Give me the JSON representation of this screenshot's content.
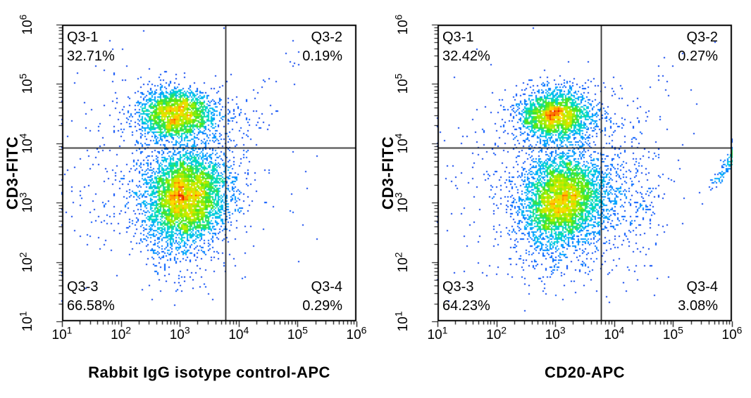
{
  "figure": {
    "background": "#ffffff",
    "text_color": "#000000",
    "gate_line_color": "#000000"
  },
  "axes": {
    "base": "10",
    "ticks_exp": [
      1,
      2,
      3,
      4,
      5,
      6
    ]
  },
  "colormap": {
    "name": "jet-density",
    "stops": [
      {
        "t": 0.0,
        "color": "#1919cd"
      },
      {
        "t": 0.18,
        "color": "#0055ff"
      },
      {
        "t": 0.33,
        "color": "#00aaff"
      },
      {
        "t": 0.45,
        "color": "#00dcc8"
      },
      {
        "t": 0.57,
        "color": "#46e61e"
      },
      {
        "t": 0.68,
        "color": "#b4f000"
      },
      {
        "t": 0.78,
        "color": "#ffdc00"
      },
      {
        "t": 0.88,
        "color": "#ff7800"
      },
      {
        "t": 1.0,
        "color": "#e10000"
      }
    ]
  },
  "chart_data": [
    {
      "type": "scatter",
      "subtype": "flow-cytometry-pseudocolor-density",
      "xlabel": "Rabbit IgG isotype control-APC",
      "ylabel": "CD3-FITC",
      "x_scale": "log",
      "y_scale": "log",
      "x_range": [
        10,
        1000000
      ],
      "y_range": [
        10,
        1000000
      ],
      "grid": false,
      "seed": 7,
      "gate": {
        "x": 6000,
        "y": 8500
      },
      "quadrants": [
        {
          "name": "Q3-1",
          "percent": "32.71%",
          "position": "top-left"
        },
        {
          "name": "Q3-2",
          "percent": "0.19%",
          "position": "top-right"
        },
        {
          "name": "Q3-3",
          "percent": "66.58%",
          "position": "bottom-left"
        },
        {
          "name": "Q3-4",
          "percent": "0.29%",
          "position": "bottom-right"
        }
      ],
      "populations": [
        {
          "name": "cd3-positive-lymphocytes",
          "n": 2400,
          "cx": 2.95,
          "cy": 4.48,
          "sx": 0.33,
          "sy": 0.21,
          "rho": 0
        },
        {
          "name": "cd3-negative-main",
          "n": 4700,
          "cx": 3.1,
          "cy": 3.1,
          "sx": 0.36,
          "sy": 0.38,
          "rho": 0.1
        },
        {
          "name": "background-scatter",
          "n": 430,
          "cx": 2.55,
          "cy": 3.55,
          "sx": 0.8,
          "sy": 0.85,
          "rho": 0
        },
        {
          "name": "low-tail",
          "n": 150,
          "cx": 2.9,
          "cy": 2.25,
          "sx": 0.38,
          "sy": 0.4,
          "rho": 0
        },
        {
          "name": "q2-spillover",
          "n": 55,
          "cx": 4.0,
          "cy": 4.45,
          "sx": 0.25,
          "sy": 0.22,
          "rho": 0
        },
        {
          "name": "q2-diagonal-trail",
          "n": 18,
          "cx": 4.5,
          "cy": 5.0,
          "sx": 0.4,
          "sy": 0.45,
          "rho": 0.93
        },
        {
          "name": "q4-spillover",
          "n": 45,
          "cx": 3.95,
          "cy": 3.3,
          "sx": 0.22,
          "sy": 0.5,
          "rho": 0
        },
        {
          "name": "q4-sparse",
          "n": 18,
          "cx": 4.6,
          "cy": 2.8,
          "sx": 0.55,
          "sy": 0.5,
          "rho": 0
        }
      ]
    },
    {
      "type": "scatter",
      "subtype": "flow-cytometry-pseudocolor-density",
      "xlabel": "CD20-APC",
      "ylabel": "CD3-FITC",
      "x_scale": "log",
      "y_scale": "log",
      "x_range": [
        10,
        1000000
      ],
      "y_range": [
        10,
        1000000
      ],
      "grid": false,
      "seed": 11,
      "gate": {
        "x": 6000,
        "y": 8500
      },
      "quadrants": [
        {
          "name": "Q3-1",
          "percent": "32.42%",
          "position": "top-left"
        },
        {
          "name": "Q3-2",
          "percent": "0.27%",
          "position": "top-right"
        },
        {
          "name": "Q3-3",
          "percent": "64.23%",
          "position": "bottom-left"
        },
        {
          "name": "Q3-4",
          "percent": "3.08%",
          "position": "bottom-right"
        }
      ],
      "populations": [
        {
          "name": "cd3-positive-lymphocytes",
          "n": 2350,
          "cx": 3.0,
          "cy": 4.47,
          "sx": 0.31,
          "sy": 0.21,
          "rho": 0
        },
        {
          "name": "cd3-negative-main",
          "n": 4250,
          "cx": 3.12,
          "cy": 3.05,
          "sx": 0.34,
          "sy": 0.38,
          "rho": 0.1
        },
        {
          "name": "background-scatter",
          "n": 430,
          "cx": 2.65,
          "cy": 3.45,
          "sx": 0.8,
          "sy": 0.85,
          "rho": 0
        },
        {
          "name": "low-tail",
          "n": 140,
          "cx": 2.95,
          "cy": 2.2,
          "sx": 0.38,
          "sy": 0.4,
          "rho": 0
        },
        {
          "name": "cd20-positive-cloud",
          "n": 520,
          "cx": 4.0,
          "cy": 3.05,
          "sx": 0.5,
          "sy": 0.55,
          "rho": 0
        },
        {
          "name": "edge-pileup-streak",
          "n": 110,
          "cx": 5.92,
          "cy": 3.62,
          "sx": 0.16,
          "sy": 0.22,
          "rho": 0.93
        },
        {
          "name": "q2-spillover",
          "n": 50,
          "cx": 4.05,
          "cy": 4.4,
          "sx": 0.28,
          "sy": 0.25,
          "rho": 0
        },
        {
          "name": "q2-sparse",
          "n": 20,
          "cx": 4.9,
          "cy": 4.9,
          "sx": 0.45,
          "sy": 0.4,
          "rho": 0.5
        }
      ]
    }
  ]
}
